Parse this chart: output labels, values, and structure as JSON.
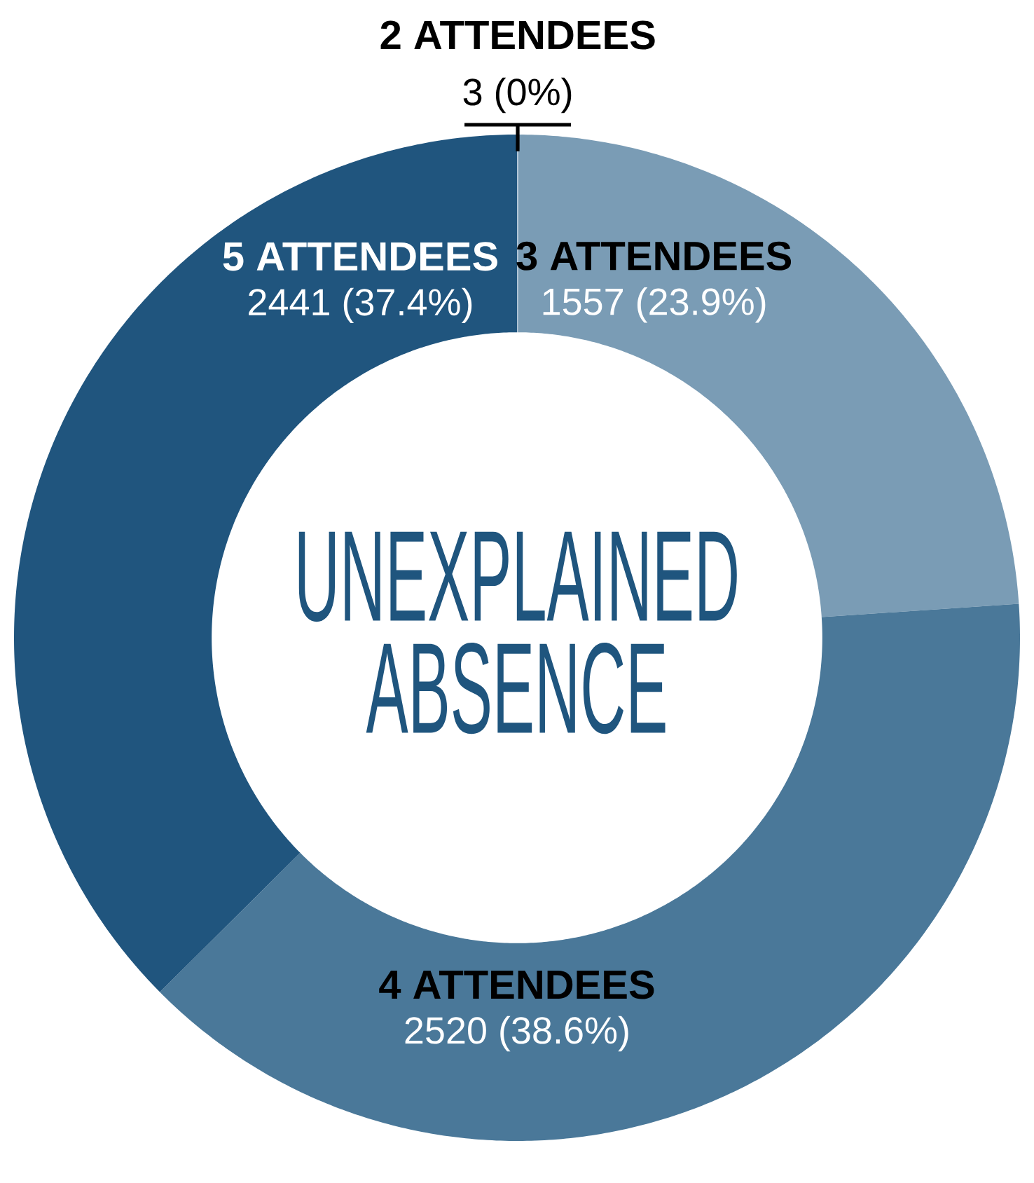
{
  "chart_data": {
    "type": "donut",
    "title": "UNEXPLAINED ABSENCE",
    "categories": [
      "2 ATTENDEES",
      "3 ATTENDEES",
      "4 ATTENDEES",
      "5 ATTENDEES"
    ],
    "values": [
      3,
      1557,
      2520,
      2441
    ],
    "value_labels": [
      "3 (0%)",
      "1557 (23.9%)",
      "2520 (38.6%)",
      "2441 (37.4%)"
    ],
    "colors": [
      "#b3c7d8",
      "#7a9cb5",
      "#4a7899",
      "#20557e"
    ]
  }
}
